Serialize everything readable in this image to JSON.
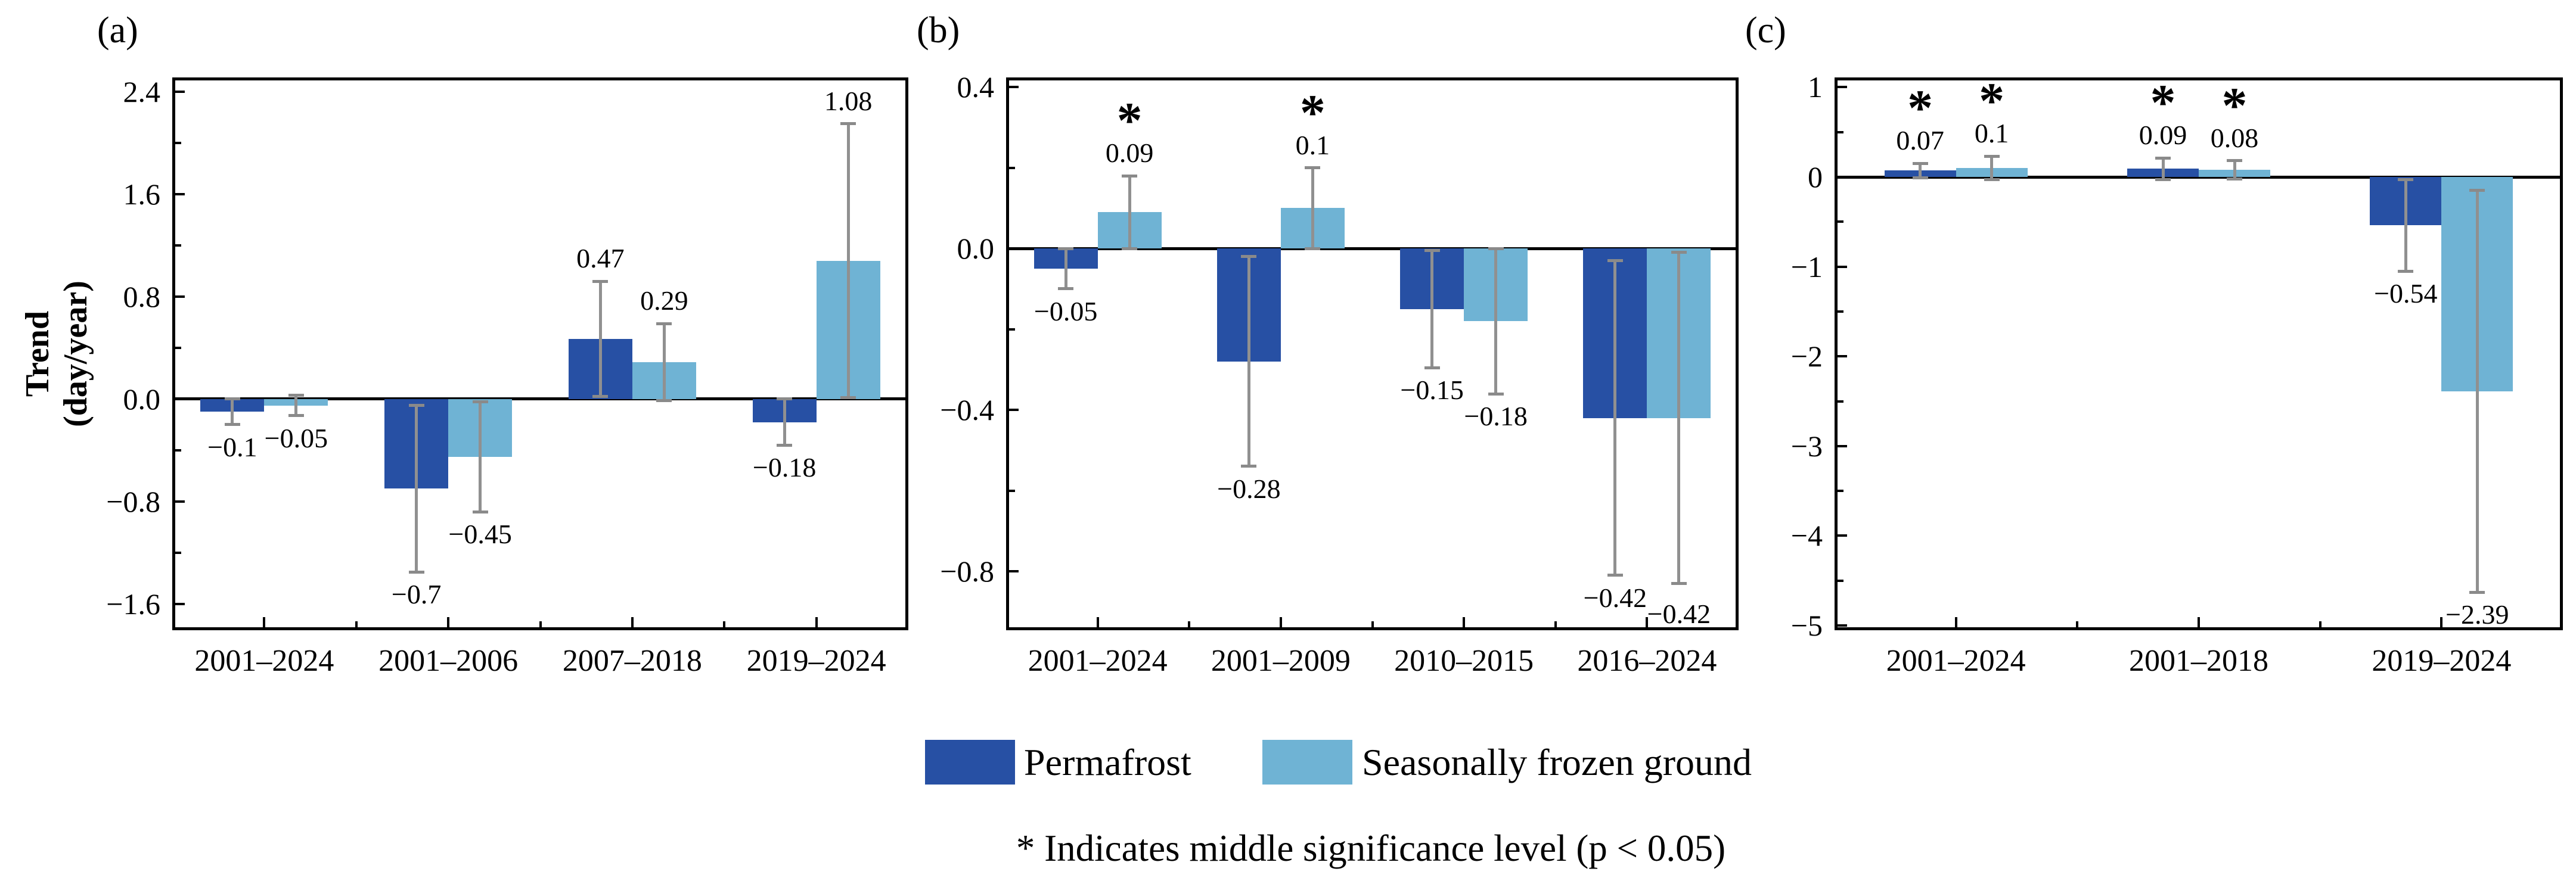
{
  "figure_titles": {
    "panel_a": "(a)",
    "panel_b": "(b)",
    "panel_c": "(c)"
  },
  "ylabel": {
    "line1": "Trend",
    "line2": "(day/year)"
  },
  "colors": {
    "permafrost": "#2750a4",
    "seasonal": "#6fb3d4",
    "error_bar": "#909090",
    "axis": "#000000"
  },
  "legend": {
    "items": [
      {
        "label": "Permafrost",
        "color": "#2750a4"
      },
      {
        "label": "Seasonally frozen ground",
        "color": "#6fb3d4"
      }
    ]
  },
  "note": "* Indicates middle significance level (p < 0.05)",
  "chart_data": [
    {
      "id": "a",
      "title": "(a)",
      "type": "bar",
      "ylabel": "Trend (day/year)",
      "xlabel": "",
      "grid": false,
      "legend_position": "bottom-center",
      "categories": [
        "2001–2024",
        "2001–2006",
        "2007–2018",
        "2019–2024"
      ],
      "ylim": [
        -1.805,
        2.512
      ],
      "yticks": [
        {
          "v": 2.4,
          "label": "2.4"
        },
        {
          "v": 1.6,
          "label": "1.6"
        },
        {
          "v": 0.8,
          "label": "0.8"
        },
        {
          "v": 0.0,
          "label": "0.0"
        },
        {
          "v": -0.8,
          "label": "−0.8"
        },
        {
          "v": -1.6,
          "label": "−1.6"
        }
      ],
      "yminor_step": 0.4,
      "series": [
        {
          "name": "Permafrost",
          "values": [
            -0.1,
            -0.7,
            0.47,
            -0.18
          ],
          "errors": [
            0.1,
            0.65,
            0.45,
            0.18
          ],
          "labels": [
            "−0.1",
            "−0.7",
            "0.47",
            "−0.18"
          ],
          "sig": [
            false,
            false,
            false,
            false
          ],
          "label_dy": [
            0,
            0,
            0,
            0
          ]
        },
        {
          "name": "Seasonally frozen ground",
          "values": [
            -0.05,
            -0.45,
            0.29,
            1.08
          ],
          "errors": [
            0.08,
            0.43,
            0.3,
            1.07
          ],
          "labels": [
            "−0.05",
            "−0.45",
            "0.29",
            "1.08"
          ],
          "sig": [
            false,
            false,
            false,
            false
          ],
          "label_dy": [
            0,
            0,
            0,
            0
          ]
        }
      ]
    },
    {
      "id": "b",
      "title": "(b)",
      "type": "bar",
      "ylabel": "",
      "xlabel": "",
      "grid": false,
      "categories": [
        "2001–2024",
        "2001–2009",
        "2010–2015",
        "2016–2024"
      ],
      "ylim": [
        -0.946,
        0.424
      ],
      "yticks": [
        {
          "v": 0.4,
          "label": "0.4"
        },
        {
          "v": 0.0,
          "label": "0.0"
        },
        {
          "v": -0.4,
          "label": "−0.4"
        },
        {
          "v": -0.8,
          "label": "−0.8"
        }
      ],
      "yminor_step": 0.2,
      "series": [
        {
          "name": "Permafrost",
          "values": [
            -0.05,
            -0.28,
            -0.15,
            -0.42
          ],
          "errors": [
            0.05,
            0.26,
            0.145,
            0.39
          ],
          "labels": [
            "−0.05",
            "−0.28",
            "−0.15",
            "−0.42"
          ],
          "sig": [
            false,
            false,
            false,
            false
          ],
          "label_dy": [
            0,
            0,
            0,
            0
          ]
        },
        {
          "name": "Seasonally frozen ground",
          "values": [
            0.09,
            0.1,
            -0.18,
            -0.42
          ],
          "errors": [
            0.09,
            0.1,
            0.18,
            0.41
          ],
          "labels": [
            "0.09",
            "0.1",
            "−0.18",
            "−0.42"
          ],
          "sig": [
            true,
            true,
            false,
            false
          ],
          "label_dy": [
            0,
            0,
            0,
            14
          ]
        }
      ]
    },
    {
      "id": "c",
      "title": "(c)",
      "type": "bar",
      "ylabel": "",
      "xlabel": "",
      "grid": false,
      "categories": [
        "2001–2024",
        "2001–2018",
        "2019–2024"
      ],
      "ylim": [
        -5.053,
        1.109
      ],
      "yticks": [
        {
          "v": 1,
          "label": "1"
        },
        {
          "v": 0,
          "label": "0"
        },
        {
          "v": -1,
          "label": "−1"
        },
        {
          "v": -2,
          "label": "−2"
        },
        {
          "v": -3,
          "label": "−3"
        },
        {
          "v": -4,
          "label": "−4"
        },
        {
          "v": -5,
          "label": "−5"
        }
      ],
      "yminor_step": 0.5,
      "series": [
        {
          "name": "Permafrost",
          "values": [
            0.07,
            0.09,
            -0.54
          ],
          "errors": [
            0.08,
            0.12,
            0.51
          ],
          "labels": [
            "0.07",
            "0.09",
            "−0.54"
          ],
          "sig": [
            true,
            true,
            false
          ],
          "label_dy": [
            0,
            0,
            0
          ]
        },
        {
          "name": "Seasonally frozen ground",
          "values": [
            0.1,
            0.08,
            -2.39
          ],
          "errors": [
            0.13,
            0.1,
            2.24
          ],
          "labels": [
            "0.1",
            "0.08",
            "−2.39"
          ],
          "sig": [
            true,
            true,
            false
          ],
          "label_dy": [
            0,
            0,
            0
          ]
        }
      ]
    }
  ]
}
